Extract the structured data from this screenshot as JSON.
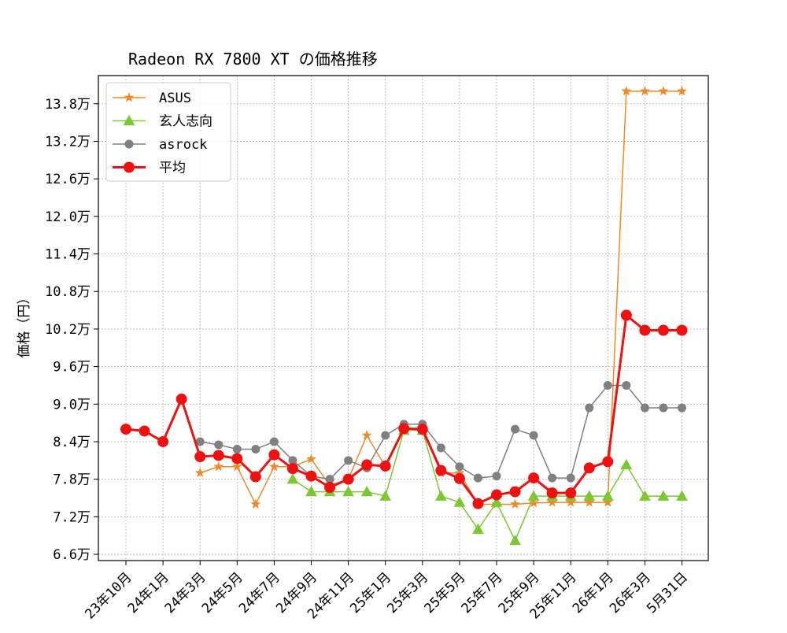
{
  "chart_data": {
    "type": "line",
    "title": "Radeon RX 7800 XT の価格推移",
    "xlabel": "",
    "ylabel": "価格（円）",
    "ylim": [
      65000,
      142500
    ],
    "yticks": [
      66000,
      72000,
      78000,
      84000,
      90000,
      96000,
      102000,
      108000,
      114000,
      120000,
      126000,
      132000,
      138000
    ],
    "ytick_labels": [
      "6.6万",
      "7.2万",
      "7.8万",
      "8.4万",
      "9.0万",
      "9.6万",
      "10.2万",
      "10.8万",
      "11.4万",
      "12.0万",
      "12.6万",
      "13.2万",
      "13.8万"
    ],
    "x_count": 31,
    "xticks": [
      0,
      2,
      4,
      6,
      8,
      10,
      12,
      14,
      16,
      18,
      20,
      22,
      24,
      26,
      28,
      30
    ],
    "xtick_labels": [
      "23年10月",
      "24年1月",
      "24年3月",
      "24年5月",
      "24年7月",
      "24年9月",
      "24年11月",
      "25年1月",
      "25年3月",
      "25年5月",
      "25年7月",
      "25年9月",
      "25年11月",
      "26年1月",
      "26年3月",
      "5月31日"
    ],
    "grid": true,
    "legend_position": "upper-left",
    "series": [
      {
        "name": "ASUS",
        "color": "#ee8a2c",
        "marker": "star",
        "line_width": 1.5,
        "values": [
          86000,
          null,
          null,
          null,
          79000,
          80000,
          80000,
          74000,
          80000,
          80000,
          81200,
          77000,
          78000,
          85000,
          80000,
          86000,
          86000,
          79000,
          79000,
          74000,
          74000,
          74000,
          74200,
          74300,
          74300,
          74300,
          74300,
          140000,
          140000,
          140000,
          140000
        ]
      },
      {
        "name": "玄人志向",
        "color": "#7dc832",
        "marker": "triangle",
        "line_width": 1.5,
        "values": [
          null,
          null,
          null,
          null,
          null,
          null,
          null,
          null,
          null,
          78000,
          76000,
          76000,
          76000,
          76000,
          75300,
          85800,
          85800,
          75300,
          74300,
          70000,
          74300,
          68200,
          75300,
          75300,
          75300,
          75300,
          75300,
          80300,
          75300,
          75300,
          75300
        ]
      },
      {
        "name": "asrock",
        "color": "#808080",
        "marker": "circle",
        "line_width": 1.5,
        "values": [
          86000,
          null,
          null,
          null,
          84000,
          83500,
          82800,
          82800,
          84000,
          81000,
          78500,
          78000,
          81000,
          79800,
          85000,
          86800,
          86800,
          83000,
          80000,
          78200,
          78500,
          86000,
          85000,
          78200,
          78200,
          89400,
          93000,
          93000,
          89400,
          89400,
          89400
        ]
      },
      {
        "name": "平均",
        "color": "#ee1111",
        "marker": "circle",
        "line_width": 3,
        "values": [
          86000,
          85700,
          84000,
          90800,
          81600,
          81800,
          81300,
          78400,
          81900,
          79700,
          78500,
          76700,
          78000,
          80300,
          80100,
          86100,
          86000,
          79400,
          78100,
          74100,
          75500,
          76000,
          78200,
          75800,
          75800,
          79800,
          80800,
          104200,
          101800,
          101800,
          101800
        ]
      }
    ]
  }
}
